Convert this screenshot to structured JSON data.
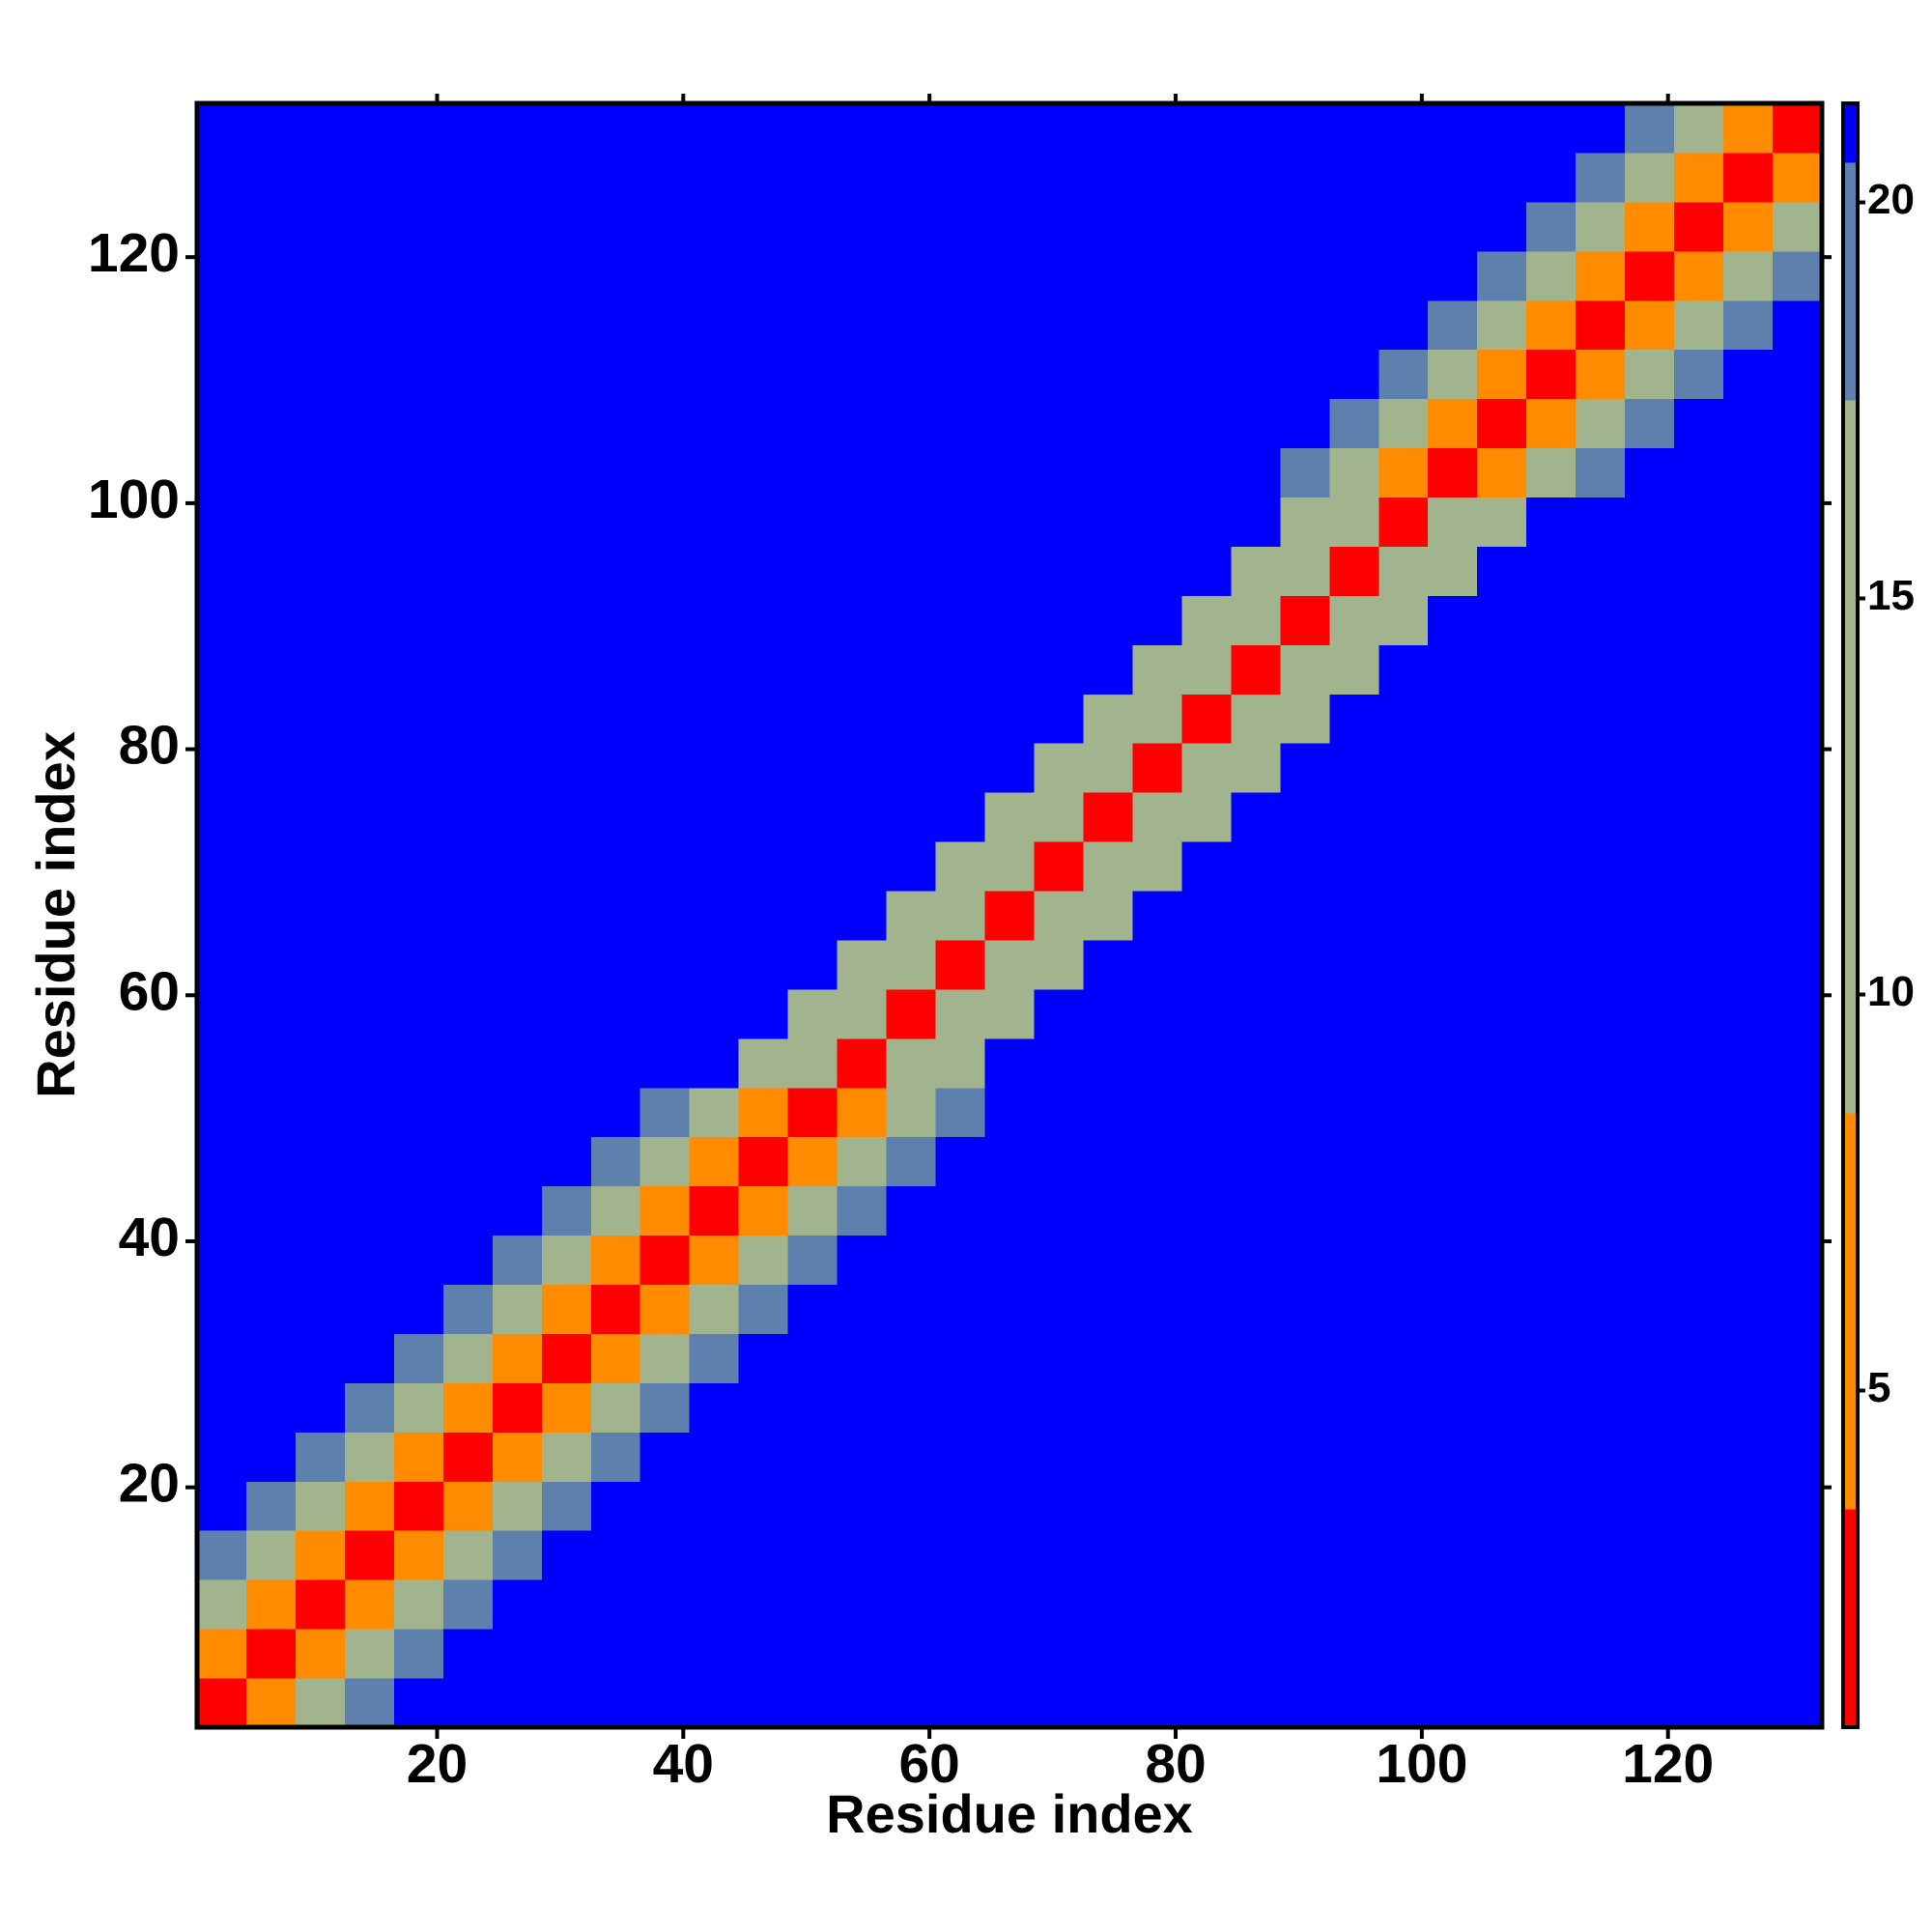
{
  "chart_data": {
    "type": "heatmap",
    "xlabel": "Residue index",
    "ylabel": "Residue index",
    "xlim": [
      0.5,
      132.5
    ],
    "ylim": [
      0.5,
      132.5
    ],
    "xticks": [
      20,
      40,
      60,
      80,
      100,
      120
    ],
    "yticks": [
      20,
      40,
      60,
      80,
      100,
      120
    ],
    "zlim": [
      0.75,
      21.25
    ],
    "zticks": [
      5,
      10,
      15,
      20
    ],
    "colorscale": [
      {
        "value": 3.5,
        "color": "#ff0000"
      },
      {
        "value": 8.5,
        "color": "#ff8c00"
      },
      {
        "value": 17.5,
        "color": "#a2b48d"
      },
      {
        "value": 20.5,
        "color": "#5e80ad"
      },
      {
        "value": 21.25,
        "color": "#0000ff"
      }
    ],
    "x": [
      2.5,
      6.5,
      10.5,
      14.5,
      18.5,
      22.5,
      26.5,
      30.5,
      34.5,
      38.5,
      42.5,
      46.5,
      50.5,
      54.5,
      58.5,
      62.5,
      66.5,
      70.5,
      74.5,
      78.5,
      82.5,
      86.5,
      90.5,
      94.5,
      98.5,
      102.5,
      106.5,
      110.5,
      114.5,
      118.5,
      122.5,
      126.5,
      130.5
    ],
    "y": [
      2.5,
      6.5,
      10.5,
      14.5,
      18.5,
      22.5,
      26.5,
      30.5,
      34.5,
      38.5,
      42.5,
      46.5,
      50.5,
      54.5,
      58.5,
      62.5,
      66.5,
      70.5,
      74.5,
      78.5,
      82.5,
      86.5,
      90.5,
      94.5,
      98.5,
      102.5,
      106.5,
      110.5,
      114.5,
      118.5,
      122.5,
      126.5,
      130.5
    ],
    "z": [
      [
        2,
        6,
        11,
        19,
        21,
        21,
        21,
        21,
        21,
        21,
        21,
        21,
        21,
        21,
        21,
        21,
        21,
        21,
        21,
        21,
        21,
        21,
        21,
        21,
        21,
        21,
        21,
        21,
        21,
        21,
        21,
        21,
        21
      ],
      [
        6,
        2,
        6,
        11,
        19,
        21,
        21,
        21,
        21,
        21,
        21,
        21,
        21,
        21,
        21,
        21,
        21,
        21,
        21,
        21,
        21,
        21,
        21,
        21,
        21,
        21,
        21,
        21,
        21,
        21,
        21,
        21,
        21
      ],
      [
        11,
        6,
        2,
        6,
        11,
        19,
        21,
        21,
        21,
        21,
        21,
        21,
        21,
        21,
        21,
        21,
        21,
        21,
        21,
        21,
        21,
        21,
        21,
        21,
        21,
        21,
        21,
        21,
        21,
        21,
        21,
        21,
        21
      ],
      [
        19,
        11,
        6,
        2,
        6,
        11,
        19,
        21,
        21,
        21,
        21,
        21,
        21,
        21,
        21,
        21,
        21,
        21,
        21,
        21,
        21,
        21,
        21,
        21,
        21,
        21,
        21,
        21,
        21,
        21,
        21,
        21,
        21
      ],
      [
        21,
        19,
        11,
        6,
        2,
        6,
        11,
        19,
        21,
        21,
        21,
        21,
        21,
        21,
        21,
        21,
        21,
        21,
        21,
        21,
        21,
        21,
        21,
        21,
        21,
        21,
        21,
        21,
        21,
        21,
        21,
        21,
        21
      ],
      [
        21,
        21,
        19,
        11,
        6,
        2,
        6,
        11,
        19,
        21,
        21,
        21,
        21,
        21,
        21,
        21,
        21,
        21,
        21,
        21,
        21,
        21,
        21,
        21,
        21,
        21,
        21,
        21,
        21,
        21,
        21,
        21,
        21
      ],
      [
        21,
        21,
        21,
        19,
        11,
        6,
        2,
        6,
        11,
        19,
        21,
        21,
        21,
        21,
        21,
        21,
        21,
        21,
        21,
        21,
        21,
        21,
        21,
        21,
        21,
        21,
        21,
        21,
        21,
        21,
        21,
        21,
        21
      ],
      [
        21,
        21,
        21,
        21,
        19,
        11,
        6,
        2,
        6,
        11,
        19,
        21,
        21,
        21,
        21,
        21,
        21,
        21,
        21,
        21,
        21,
        21,
        21,
        21,
        21,
        21,
        21,
        21,
        21,
        21,
        21,
        21,
        21
      ],
      [
        21,
        21,
        21,
        21,
        21,
        19,
        11,
        6,
        2,
        6,
        11,
        19,
        21,
        21,
        21,
        21,
        21,
        21,
        21,
        21,
        21,
        21,
        21,
        21,
        21,
        21,
        21,
        21,
        21,
        21,
        21,
        21,
        21
      ],
      [
        21,
        21,
        21,
        21,
        21,
        21,
        19,
        11,
        6,
        2,
        6,
        11,
        19,
        21,
        21,
        21,
        21,
        21,
        21,
        21,
        21,
        21,
        21,
        21,
        21,
        21,
        21,
        21,
        21,
        21,
        21,
        21,
        21
      ],
      [
        21,
        21,
        21,
        21,
        21,
        21,
        21,
        19,
        11,
        6,
        2,
        6,
        11,
        19,
        21,
        21,
        21,
        21,
        21,
        21,
        21,
        21,
        21,
        21,
        21,
        21,
        21,
        21,
        21,
        21,
        21,
        21,
        21
      ],
      [
        21,
        21,
        21,
        21,
        21,
        21,
        21,
        21,
        19,
        11,
        6,
        2,
        6,
        11,
        19,
        21,
        21,
        21,
        21,
        21,
        21,
        21,
        21,
        21,
        21,
        21,
        21,
        21,
        21,
        21,
        21,
        21,
        21
      ],
      [
        21,
        21,
        21,
        21,
        21,
        21,
        21,
        21,
        21,
        19,
        11,
        6,
        2,
        6,
        11,
        19,
        21,
        21,
        21,
        21,
        21,
        21,
        21,
        21,
        21,
        21,
        21,
        21,
        21,
        21,
        21,
        21,
        21
      ],
      [
        21,
        21,
        21,
        21,
        21,
        21,
        21,
        21,
        21,
        21,
        21,
        17,
        9,
        2,
        9,
        17,
        21,
        21,
        21,
        21,
        21,
        21,
        21,
        21,
        21,
        21,
        21,
        21,
        21,
        21,
        21,
        21,
        21
      ],
      [
        21,
        21,
        21,
        21,
        21,
        21,
        21,
        21,
        21,
        21,
        21,
        21,
        17,
        9,
        2,
        9,
        17,
        21,
        21,
        21,
        21,
        21,
        21,
        21,
        21,
        21,
        21,
        21,
        21,
        21,
        21,
        21,
        21
      ],
      [
        21,
        21,
        21,
        21,
        21,
        21,
        21,
        21,
        21,
        21,
        21,
        21,
        21,
        17,
        9,
        2,
        9,
        17,
        21,
        21,
        21,
        21,
        21,
        21,
        21,
        21,
        21,
        21,
        21,
        21,
        21,
        21,
        21
      ],
      [
        21,
        21,
        21,
        21,
        21,
        21,
        21,
        21,
        21,
        21,
        21,
        21,
        21,
        21,
        17,
        9,
        2,
        9,
        17,
        21,
        21,
        21,
        21,
        21,
        21,
        21,
        21,
        21,
        21,
        21,
        21,
        21,
        21
      ],
      [
        21,
        21,
        21,
        21,
        21,
        21,
        21,
        21,
        21,
        21,
        21,
        21,
        21,
        21,
        21,
        17,
        9,
        2,
        9,
        17,
        21,
        21,
        21,
        21,
        21,
        21,
        21,
        21,
        21,
        21,
        21,
        21,
        21
      ],
      [
        21,
        21,
        21,
        21,
        21,
        21,
        21,
        21,
        21,
        21,
        21,
        21,
        21,
        21,
        21,
        21,
        17,
        9,
        2,
        9,
        17,
        21,
        21,
        21,
        21,
        21,
        21,
        21,
        21,
        21,
        21,
        21,
        21
      ],
      [
        21,
        21,
        21,
        21,
        21,
        21,
        21,
        21,
        21,
        21,
        21,
        21,
        21,
        21,
        21,
        21,
        21,
        17,
        9,
        2,
        9,
        17,
        21,
        21,
        21,
        21,
        21,
        21,
        21,
        21,
        21,
        21,
        21
      ],
      [
        21,
        21,
        21,
        21,
        21,
        21,
        21,
        21,
        21,
        21,
        21,
        21,
        21,
        21,
        21,
        21,
        21,
        21,
        17,
        9,
        2,
        9,
        17,
        21,
        21,
        21,
        21,
        21,
        21,
        21,
        21,
        21,
        21
      ],
      [
        21,
        21,
        21,
        21,
        21,
        21,
        21,
        21,
        21,
        21,
        21,
        21,
        21,
        21,
        21,
        21,
        21,
        21,
        21,
        17,
        9,
        2,
        9,
        17,
        21,
        21,
        21,
        21,
        21,
        21,
        21,
        21,
        21
      ],
      [
        21,
        21,
        21,
        21,
        21,
        21,
        21,
        21,
        21,
        21,
        21,
        21,
        21,
        21,
        21,
        21,
        21,
        21,
        21,
        21,
        17,
        9,
        2,
        9,
        17,
        21,
        21,
        21,
        21,
        21,
        21,
        21,
        21
      ],
      [
        21,
        21,
        21,
        21,
        21,
        21,
        21,
        21,
        21,
        21,
        21,
        21,
        21,
        21,
        21,
        21,
        21,
        21,
        21,
        21,
        21,
        17,
        9,
        2,
        9,
        17,
        21,
        21,
        21,
        21,
        21,
        21,
        21
      ],
      [
        21,
        21,
        21,
        21,
        21,
        21,
        21,
        21,
        21,
        21,
        21,
        21,
        21,
        21,
        21,
        21,
        21,
        21,
        21,
        21,
        21,
        21,
        17,
        9,
        2,
        9,
        17,
        21,
        21,
        21,
        21,
        21,
        21
      ],
      [
        21,
        21,
        21,
        21,
        21,
        21,
        21,
        21,
        21,
        21,
        21,
        21,
        21,
        21,
        21,
        21,
        21,
        21,
        21,
        21,
        21,
        21,
        19,
        12,
        8,
        2,
        8,
        12,
        19,
        21,
        21,
        21,
        21
      ],
      [
        21,
        21,
        21,
        21,
        21,
        21,
        21,
        21,
        21,
        21,
        21,
        21,
        21,
        21,
        21,
        21,
        21,
        21,
        21,
        21,
        21,
        21,
        21,
        19,
        12,
        8,
        2,
        8,
        12,
        19,
        21,
        21,
        21
      ],
      [
        21,
        21,
        21,
        21,
        21,
        21,
        21,
        21,
        21,
        21,
        21,
        21,
        21,
        21,
        21,
        21,
        21,
        21,
        21,
        21,
        21,
        21,
        21,
        21,
        19,
        12,
        8,
        2,
        8,
        12,
        19,
        21,
        21
      ],
      [
        21,
        21,
        21,
        21,
        21,
        21,
        21,
        21,
        21,
        21,
        21,
        21,
        21,
        21,
        21,
        21,
        21,
        21,
        21,
        21,
        21,
        21,
        21,
        21,
        21,
        19,
        12,
        8,
        2,
        8,
        12,
        19,
        21
      ],
      [
        21,
        21,
        21,
        21,
        21,
        21,
        21,
        21,
        21,
        21,
        21,
        21,
        21,
        21,
        21,
        21,
        21,
        21,
        21,
        21,
        21,
        21,
        21,
        21,
        21,
        21,
        19,
        12,
        8,
        2,
        8,
        12,
        19
      ],
      [
        21,
        21,
        21,
        21,
        21,
        21,
        21,
        21,
        21,
        21,
        21,
        21,
        21,
        21,
        21,
        21,
        21,
        21,
        21,
        21,
        21,
        21,
        21,
        21,
        21,
        21,
        21,
        19,
        12,
        8,
        2,
        8,
        12
      ],
      [
        21,
        21,
        21,
        21,
        21,
        21,
        21,
        21,
        21,
        21,
        21,
        21,
        21,
        21,
        21,
        21,
        21,
        21,
        21,
        21,
        21,
        21,
        21,
        21,
        21,
        21,
        21,
        21,
        19,
        12,
        8,
        2,
        8
      ],
      [
        21,
        21,
        21,
        21,
        21,
        21,
        21,
        21,
        21,
        21,
        21,
        21,
        21,
        21,
        21,
        21,
        21,
        21,
        21,
        21,
        21,
        21,
        21,
        21,
        21,
        21,
        21,
        21,
        21,
        19,
        12,
        8,
        2
      ]
    ]
  }
}
